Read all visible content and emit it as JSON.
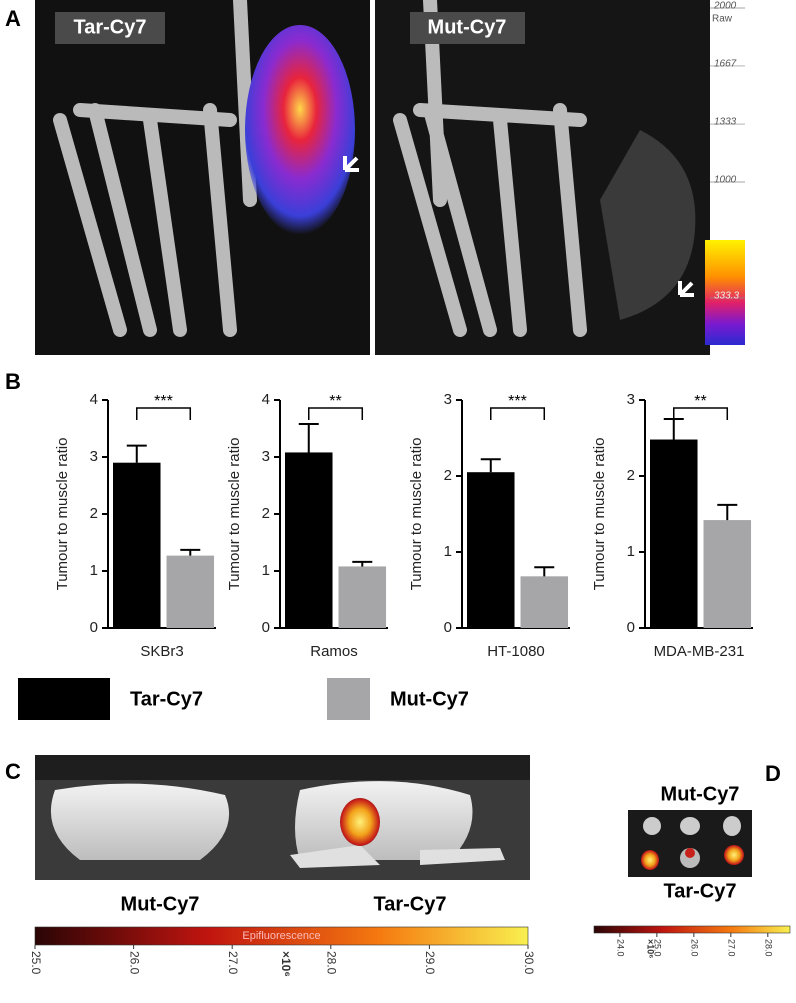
{
  "panel_a": {
    "label": "A",
    "images": [
      "Tar-Cy7",
      "Mut-Cy7"
    ],
    "colorbar": {
      "unit": "Raw",
      "ticks": [
        2000,
        1667,
        1333,
        1000,
        333.3
      ]
    }
  },
  "panel_b": {
    "label": "B",
    "legend": [
      {
        "name": "Tar-Cy7",
        "color": "#000000"
      },
      {
        "name": "Mut-Cy7",
        "color": "#a6a6a8"
      }
    ]
  },
  "chart_data": [
    {
      "type": "bar",
      "ylabel": "Tumour to muscle ratio",
      "categories": [
        "SKBr3"
      ],
      "series": [
        {
          "values": [
            2.9
          ],
          "errors": [
            0.3
          ]
        },
        {
          "values": [
            1.27
          ],
          "errors": [
            0.1
          ]
        }
      ],
      "annotation": "***",
      "ylim": [
        0,
        4
      ],
      "yticks": [
        0,
        1,
        2,
        3,
        4
      ]
    },
    {
      "type": "bar",
      "ylabel": "Tumour to muscle ratio",
      "categories": [
        "Ramos"
      ],
      "series": [
        {
          "values": [
            3.08
          ],
          "errors": [
            0.5
          ]
        },
        {
          "values": [
            1.08
          ],
          "errors": [
            0.08
          ]
        }
      ],
      "annotation": "**",
      "ylim": [
        0,
        4
      ],
      "yticks": [
        0,
        1,
        2,
        3,
        4
      ]
    },
    {
      "type": "bar",
      "ylabel": "Tumour to muscle ratio",
      "categories": [
        "HT-1080"
      ],
      "series": [
        {
          "values": [
            2.05
          ],
          "errors": [
            0.17
          ]
        },
        {
          "values": [
            0.68
          ],
          "errors": [
            0.12
          ]
        }
      ],
      "annotation": "***",
      "ylim": [
        0,
        3
      ],
      "yticks": [
        0,
        1,
        2,
        3
      ]
    },
    {
      "type": "bar",
      "ylabel": "Tumour to muscle ratio",
      "categories": [
        "MDA-MB-231"
      ],
      "series": [
        {
          "values": [
            2.48
          ],
          "errors": [
            0.27
          ]
        },
        {
          "values": [
            1.42
          ],
          "errors": [
            0.2
          ]
        }
      ],
      "annotation": "**",
      "ylim": [
        0,
        3
      ],
      "yticks": [
        0,
        1,
        2,
        3
      ]
    }
  ],
  "panel_c": {
    "label": "C",
    "images": [
      "Mut-Cy7",
      "Tar-Cy7"
    ],
    "colorbar": {
      "title": "Epifluorescence",
      "unit": "×10⁶",
      "lim": [
        25,
        30
      ],
      "ticks": [
        {
          "value": 25,
          "label": "25.0"
        },
        {
          "value": 26,
          "label": "26.0"
        },
        {
          "value": 27,
          "label": "27.0"
        },
        {
          "value": 28,
          "label": "28.0"
        },
        {
          "value": 29,
          "label": "29.0"
        },
        {
          "value": 30,
          "label": "30.0"
        }
      ]
    }
  },
  "panel_d": {
    "label": "D",
    "images": [
      "Mut-Cy7",
      "Tar-Cy7"
    ],
    "colorbar": {
      "unit": "×10⁶",
      "lim": [
        23.3,
        28.6
      ],
      "ticks": [
        {
          "value": 24,
          "label": "24.0"
        },
        {
          "value": 25,
          "label": "25.0"
        },
        {
          "value": 26,
          "label": "26.0"
        },
        {
          "value": 27,
          "label": "27.0"
        },
        {
          "value": 28,
          "label": "28.0"
        }
      ]
    }
  }
}
